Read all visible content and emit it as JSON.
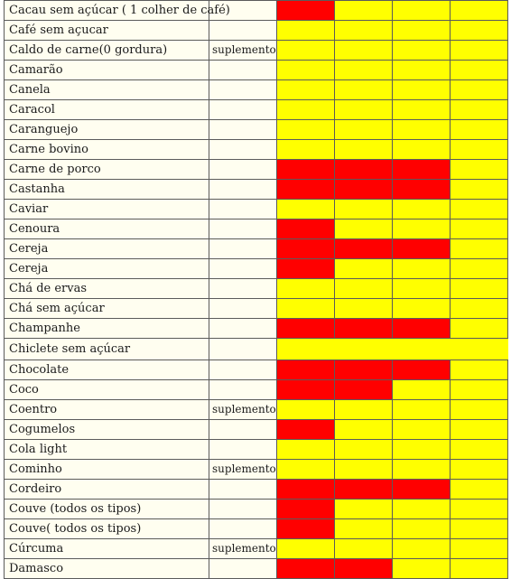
{
  "colors": {
    "red": "#ff0000",
    "yellow": "#ffff00",
    "label_bg": "#fffef0"
  },
  "rows": [
    {
      "name": "Cacau sem açúcar ( 1 colher de café)",
      "note": "",
      "cells": [
        "r",
        "y",
        "y",
        "y"
      ]
    },
    {
      "name": "Café sem açucar",
      "note": "",
      "cells": [
        "y",
        "y",
        "y",
        "y"
      ]
    },
    {
      "name": "Caldo de carne(0 gordura)",
      "note": "suplemento",
      "cells": [
        "y",
        "y",
        "y",
        "y"
      ]
    },
    {
      "name": "Camarão",
      "note": "",
      "cells": [
        "y",
        "y",
        "y",
        "y"
      ]
    },
    {
      "name": "Canela",
      "note": "",
      "cells": [
        "y",
        "y",
        "y",
        "y"
      ]
    },
    {
      "name": "Caracol",
      "note": "",
      "cells": [
        "y",
        "y",
        "y",
        "y"
      ]
    },
    {
      "name": "Caranguejo",
      "note": "",
      "cells": [
        "y",
        "y",
        "y",
        "y"
      ]
    },
    {
      "name": "Carne bovino",
      "note": "",
      "cells": [
        "y",
        "y",
        "y",
        "y"
      ]
    },
    {
      "name": "Carne de porco",
      "note": "",
      "cells": [
        "r",
        "r",
        "r",
        "y"
      ]
    },
    {
      "name": "Castanha",
      "note": "",
      "cells": [
        "r",
        "r",
        "r",
        "y"
      ]
    },
    {
      "name": "Caviar",
      "note": "",
      "cells": [
        "y",
        "y",
        "y",
        "y"
      ]
    },
    {
      "name": "Cenoura",
      "note": "",
      "cells": [
        "r",
        "y",
        "y",
        "y"
      ]
    },
    {
      "name": "Cereja",
      "note": "",
      "cells": [
        "r",
        "r",
        "r",
        "y"
      ]
    },
    {
      "name": "Cereja",
      "note": "",
      "cells": [
        "r",
        "y",
        "y",
        "y"
      ]
    },
    {
      "name": "Chá de ervas",
      "note": "",
      "cells": [
        "y",
        "y",
        "y",
        "y"
      ]
    },
    {
      "name": "Chá sem açúcar",
      "note": "",
      "cells": [
        "y",
        "y",
        "y",
        "y"
      ]
    },
    {
      "name": "Champanhe",
      "note": "",
      "cells": [
        "r",
        "r",
        "r",
        "y"
      ]
    },
    {
      "name": "Chiclete sem açúcar",
      "note": "",
      "cells": [
        "merged"
      ]
    },
    {
      "name": "Chocolate",
      "note": "",
      "cells": [
        "r",
        "r",
        "r",
        "y"
      ]
    },
    {
      "name": "Coco",
      "note": "",
      "cells": [
        "r",
        "r",
        "y",
        "y"
      ]
    },
    {
      "name": "Coentro",
      "note": "suplemento",
      "cells": [
        "y",
        "y",
        "y",
        "y"
      ]
    },
    {
      "name": "Cogumelos",
      "note": "",
      "cells": [
        "r",
        "y",
        "y",
        "y"
      ]
    },
    {
      "name": "Cola light",
      "note": "",
      "cells": [
        "y",
        "y",
        "y",
        "y"
      ]
    },
    {
      "name": "Cominho",
      "note": "suplemento",
      "cells": [
        "y",
        "y",
        "y",
        "y"
      ]
    },
    {
      "name": "Cordeiro",
      "note": "",
      "cells": [
        "r",
        "r",
        "r",
        "y"
      ]
    },
    {
      "name": "Couve (todos os tipos)",
      "note": "",
      "cells": [
        "r",
        "y",
        "y",
        "y"
      ]
    },
    {
      "name": "Couve( todos os tipos)",
      "note": "",
      "cells": [
        "r",
        "y",
        "y",
        "y"
      ]
    },
    {
      "name": "Cúrcuma",
      "note": "suplemento",
      "cells": [
        "y",
        "y",
        "y",
        "y"
      ]
    },
    {
      "name": "Damasco",
      "note": "",
      "cells": [
        "r",
        "r",
        "y",
        "y"
      ]
    }
  ]
}
